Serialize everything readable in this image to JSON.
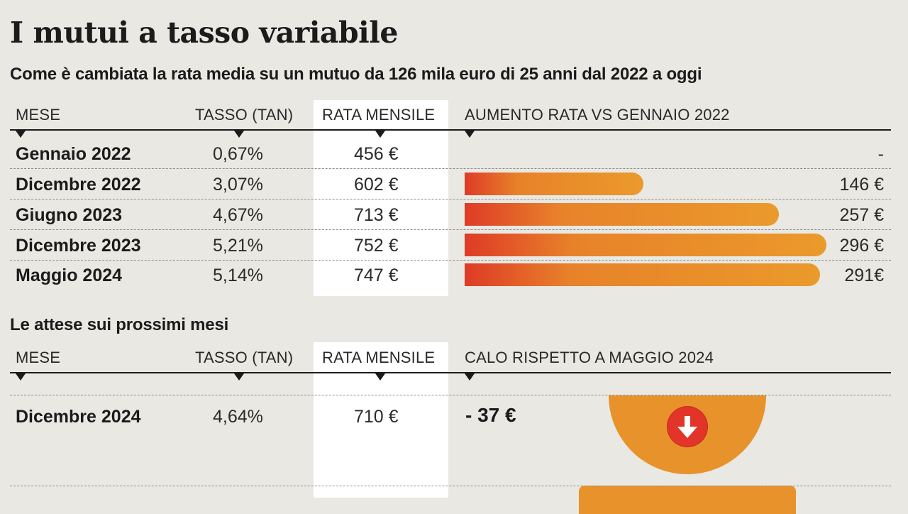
{
  "title": "I mutui a tasso variabile",
  "subtitle": "Come è cambiata la rata media su un mutuo da 126 mila euro di 25 anni dal 2022 a oggi",
  "table1": {
    "headers": [
      "MESE",
      "TASSO (TAN)",
      "RATA MENSILE",
      "AUMENTO RATA VS GENNAIO 2022"
    ],
    "rows": [
      {
        "month": "Gennaio 2022",
        "rate": "0,67%",
        "payment": "456 €",
        "increase": "-",
        "increase_value": 0
      },
      {
        "month": "Dicembre 2022",
        "rate": "3,07%",
        "payment": "602 €",
        "increase": "146 €",
        "increase_value": 146
      },
      {
        "month": "Giugno 2023",
        "rate": "4,67%",
        "payment": "713 €",
        "increase": "257 €",
        "increase_value": 257
      },
      {
        "month": "Dicembre 2023",
        "rate": "5,21%",
        "payment": "752 €",
        "increase": "296 €",
        "increase_value": 296
      },
      {
        "month": "Maggio 2024",
        "rate": "5,14%",
        "payment": "747 €",
        "increase": "291€",
        "increase_value": 291
      }
    ]
  },
  "section2_title": "Le attese sui prossimi mesi",
  "table2": {
    "headers": [
      "MESE",
      "TASSO (TAN)",
      "RATA MENSILE",
      "CALO RISPETTO A MAGGIO 2024"
    ],
    "rows": [
      {
        "month": "Dicembre 2024",
        "rate": "4,64%",
        "payment": "710 €",
        "decrease": "- 37 €"
      }
    ]
  },
  "icons": [
    "down-arrow-icon"
  ],
  "colors": {
    "bar_start": "#de3b26",
    "bar_end": "#ea9a2b",
    "accent_orange": "#e8922b",
    "arrow_red": "#e3342a"
  },
  "chart_data": {
    "type": "bar",
    "categories": [
      "Gennaio 2022",
      "Dicembre 2022",
      "Giugno 2023",
      "Dicembre 2023",
      "Maggio 2024"
    ],
    "series": [
      {
        "values": [
          0,
          146,
          257,
          296,
          291
        ]
      }
    ],
    "xlabel": "AUMENTO RATA VS GENNAIO 2022",
    "orientation": "horizontal",
    "grid": false
  }
}
